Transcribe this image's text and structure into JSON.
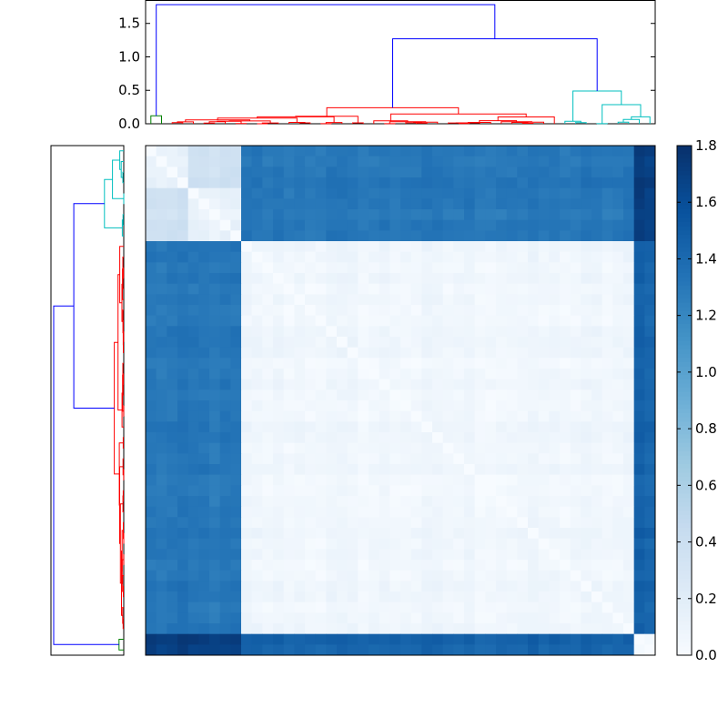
{
  "chart_data": [
    {
      "type": "dendrogram",
      "orientation": "top",
      "ylim": [
        0,
        1.85
      ],
      "yticks": [
        "0.0",
        "0.5",
        "1.0",
        "1.5"
      ],
      "cluster_colors": {
        "small": "#008000",
        "large": "#ff0000",
        "right": "#00bfbf",
        "link": "#0000ff"
      },
      "leaf_groups": {
        "small": 2,
        "large": 37,
        "right": 9
      },
      "merge_heights": {
        "root": 1.78,
        "upper": 1.27,
        "large_cluster": 0.24,
        "right_cluster": 0.49,
        "small_cluster": 0.12
      }
    },
    {
      "type": "dendrogram",
      "orientation": "left",
      "note_mirror": "same linkage as top dendrogram, leaves ordered to match heatmap rows"
    },
    {
      "type": "heatmap",
      "n": 48,
      "colormap": "Blues",
      "clim": [
        0.0,
        1.8
      ],
      "group_order": [
        "right",
        "large",
        "small"
      ],
      "group_sizes": {
        "right": 9,
        "large": 37,
        "small": 2
      },
      "block_means": {
        "right_right": 0.15,
        "right_large": 1.3,
        "right_small": 1.7,
        "large_large": 0.06,
        "large_small": 1.45,
        "small_small": 0.02,
        "right_sub_A_B": 0.35
      },
      "colorbar_ticks": [
        "0.0",
        "0.2",
        "0.4",
        "0.6",
        "0.8",
        "1.0",
        "1.2",
        "1.4",
        "1.6",
        "1.8"
      ]
    }
  ]
}
